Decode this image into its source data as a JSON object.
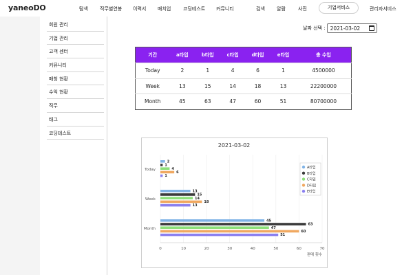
{
  "header": {
    "logo": "yaneoDO",
    "nav": [
      "탐색",
      "직무별연봉",
      "이력서",
      "매치업",
      "코딩테스트",
      "커뮤니티",
      "검색",
      "알람",
      "사진"
    ],
    "corp_service": "기업서비스",
    "admin_service": "관리자서비스"
  },
  "sidebar": {
    "items": [
      "회원 관리",
      "기업 관리",
      "고객 센터",
      "커뮤니티",
      "매칭 현황",
      "수익 현황",
      "직무",
      "태그",
      "코딩테스트"
    ]
  },
  "date_filter": {
    "label": "날짜 선택 :",
    "value": "2021-03-02"
  },
  "table": {
    "headers": [
      "기간",
      "a타입",
      "b타입",
      "c타입",
      "d타입",
      "e타입",
      "총 수입"
    ],
    "rows": [
      [
        "Today",
        "2",
        "1",
        "4",
        "6",
        "1",
        "4500000"
      ],
      [
        "Week",
        "13",
        "15",
        "14",
        "18",
        "13",
        "22200000"
      ],
      [
        "Month",
        "45",
        "63",
        "47",
        "60",
        "51",
        "80700000"
      ]
    ]
  },
  "chart_data": {
    "type": "bar",
    "orientation": "horizontal",
    "title": "2021-03-02",
    "xlabel": "판매 횟수",
    "ylabel": "",
    "xlim": [
      0,
      70
    ],
    "x_ticks": [
      "0",
      "10",
      "20",
      "30",
      "40",
      "50",
      "60",
      "70"
    ],
    "categories": [
      "Today",
      "Week",
      "Month"
    ],
    "series": [
      {
        "name": "A타입",
        "color": "#7fb3e6",
        "values": [
          2,
          13,
          45
        ]
      },
      {
        "name": "B타입",
        "color": "#3a3a3a",
        "values": [
          1,
          15,
          63
        ]
      },
      {
        "name": "C타입",
        "color": "#8de07a",
        "values": [
          4,
          14,
          47
        ]
      },
      {
        "name": "D타입",
        "color": "#f0a860",
        "values": [
          6,
          18,
          60
        ]
      },
      {
        "name": "E타입",
        "color": "#8a7ff0",
        "values": [
          1,
          13,
          51
        ]
      }
    ],
    "grid": true,
    "legend": "right"
  }
}
